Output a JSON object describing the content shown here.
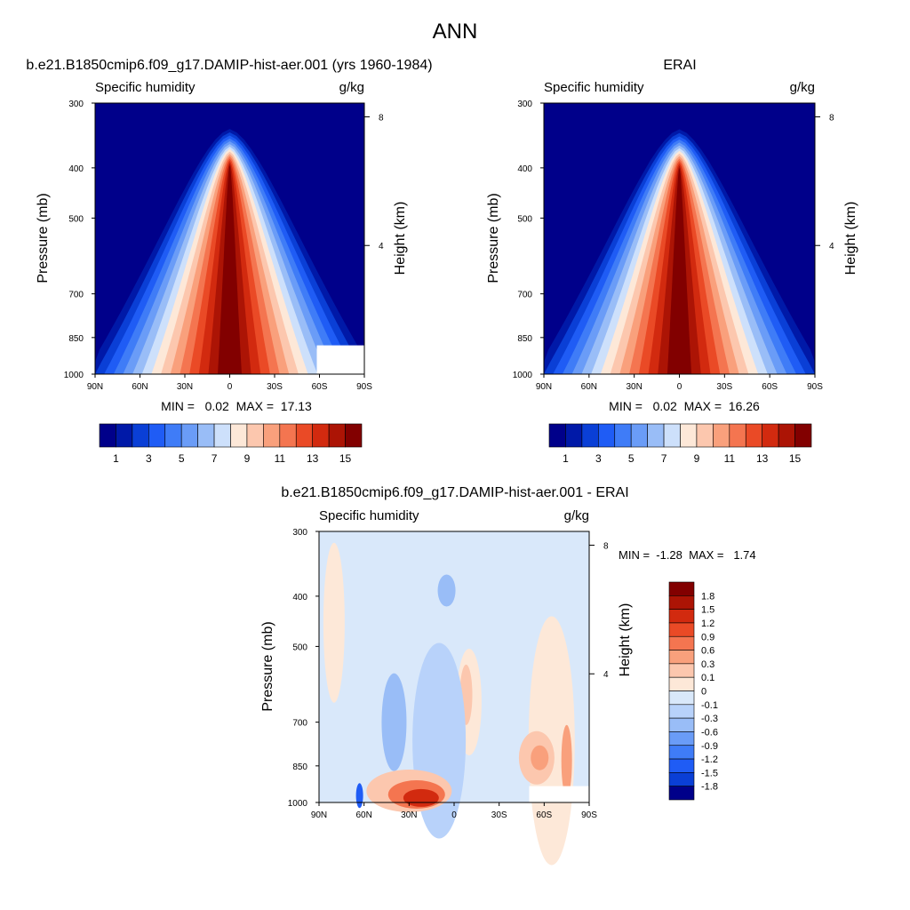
{
  "figure": {
    "title": "ANN"
  },
  "chart_data": [
    {
      "type": "heatmap",
      "panel": "model",
      "title": "b.e21.B1850cmip6.f09_g17.DAMIP-hist-aer.001 (yrs 1960-1984)",
      "field_label": "Specific humidity",
      "units": "g/kg",
      "ylabel": "Pressure (mb)",
      "ylabel_right": "Height (km)",
      "x_ticks": [
        "90N",
        "60N",
        "30N",
        "0",
        "30S",
        "60S",
        "90S"
      ],
      "y_ticks": [
        "300",
        "400",
        "500",
        "700",
        "850",
        "1000"
      ],
      "y_right_ticks": [
        "8",
        "4"
      ],
      "ylim": [
        1000,
        300
      ],
      "min_max": "MIN =   0.02  MAX =  17.13",
      "min": 0.02,
      "max": 17.13,
      "levels": [
        1,
        2,
        3,
        4,
        5,
        6,
        7,
        8,
        9,
        10,
        11,
        12,
        13,
        14,
        15
      ],
      "colorbar_labels": [
        "1",
        "3",
        "5",
        "7",
        "9",
        "11",
        "13",
        "15"
      ]
    },
    {
      "type": "heatmap",
      "panel": "obs",
      "title": "ERAI",
      "field_label": "Specific humidity",
      "units": "g/kg",
      "ylabel": "Pressure (mb)",
      "ylabel_right": "Height (km)",
      "x_ticks": [
        "90N",
        "60N",
        "30N",
        "0",
        "30S",
        "60S",
        "90S"
      ],
      "y_ticks": [
        "300",
        "400",
        "500",
        "700",
        "850",
        "1000"
      ],
      "y_right_ticks": [
        "8",
        "4"
      ],
      "ylim": [
        1000,
        300
      ],
      "min_max": "MIN =   0.02  MAX =  16.26",
      "min": 0.02,
      "max": 16.26,
      "levels": [
        1,
        2,
        3,
        4,
        5,
        6,
        7,
        8,
        9,
        10,
        11,
        12,
        13,
        14,
        15
      ],
      "colorbar_labels": [
        "1",
        "3",
        "5",
        "7",
        "9",
        "11",
        "13",
        "15"
      ]
    },
    {
      "type": "heatmap",
      "panel": "diff",
      "title": "b.e21.B1850cmip6.f09_g17.DAMIP-hist-aer.001 - ERAI",
      "field_label": "Specific humidity",
      "units": "g/kg",
      "ylabel": "Pressure (mb)",
      "ylabel_right": "Height (km)",
      "x_ticks": [
        "90N",
        "60N",
        "30N",
        "0",
        "30S",
        "60S",
        "90S"
      ],
      "y_ticks": [
        "300",
        "400",
        "500",
        "700",
        "850",
        "1000"
      ],
      "y_right_ticks": [
        "8",
        "4"
      ],
      "ylim": [
        1000,
        300
      ],
      "min_max": "MIN =  -1.28  MAX =   1.74",
      "min": -1.28,
      "max": 1.74,
      "levels": [
        -1.8,
        -1.5,
        -1.2,
        -0.9,
        -0.6,
        -0.3,
        -0.1,
        0,
        0.1,
        0.3,
        0.6,
        0.9,
        1.2,
        1.5,
        1.8
      ],
      "colorbar_labels": [
        "1.8",
        "1.5",
        "1.2",
        "0.9",
        "0.6",
        "0.3",
        "0.1",
        "0",
        "-0.1",
        "-0.3",
        "-0.6",
        "-0.9",
        "-1.2",
        "-1.5",
        "-1.8"
      ]
    }
  ],
  "colors": {
    "seq": [
      "#00008a",
      "#0019a8",
      "#0a3fd6",
      "#1f5cf5",
      "#3f7cf7",
      "#6a9cf7",
      "#99bdf7",
      "#cde0fb",
      "#fde8d8",
      "#fcc7ae",
      "#f9a07c",
      "#f47550",
      "#ea4a26",
      "#d22a0f",
      "#ac1405",
      "#820000"
    ],
    "div": [
      "#820000",
      "#ac1405",
      "#d22a0f",
      "#ea4a26",
      "#f47550",
      "#f9a07c",
      "#fcc7ae",
      "#fde8d8",
      "#d9e8fa",
      "#b8d2fa",
      "#99bdf7",
      "#6a9cf7",
      "#3f7cf7",
      "#1f5cf5",
      "#0a3fd6",
      "#00008a"
    ],
    "missing": "#ffffff"
  }
}
